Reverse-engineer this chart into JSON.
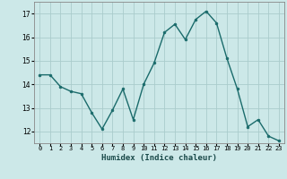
{
  "x": [
    0,
    1,
    2,
    3,
    4,
    5,
    6,
    7,
    8,
    9,
    10,
    11,
    12,
    13,
    14,
    15,
    16,
    17,
    18,
    19,
    20,
    21,
    22,
    23
  ],
  "y": [
    14.4,
    14.4,
    13.9,
    13.7,
    13.6,
    12.8,
    12.1,
    12.9,
    13.8,
    12.5,
    14.0,
    14.9,
    16.2,
    16.55,
    15.9,
    16.75,
    17.1,
    16.6,
    15.1,
    13.8,
    12.2,
    12.5,
    11.8,
    11.6
  ],
  "xlabel": "Humidex (Indice chaleur)",
  "bg_color": "#cce8e8",
  "grid_color": "#aacccc",
  "line_color": "#1a6b6b",
  "marker_color": "#1a6b6b",
  "ylim": [
    11.5,
    17.5
  ],
  "xlim": [
    -0.5,
    23.5
  ],
  "yticks": [
    12,
    13,
    14,
    15,
    16,
    17
  ],
  "xtick_labels": [
    "0",
    "1",
    "2",
    "3",
    "4",
    "5",
    "6",
    "7",
    "8",
    "9",
    "10",
    "11",
    "12",
    "13",
    "14",
    "15",
    "16",
    "17",
    "18",
    "19",
    "20",
    "21",
    "22",
    "23"
  ]
}
